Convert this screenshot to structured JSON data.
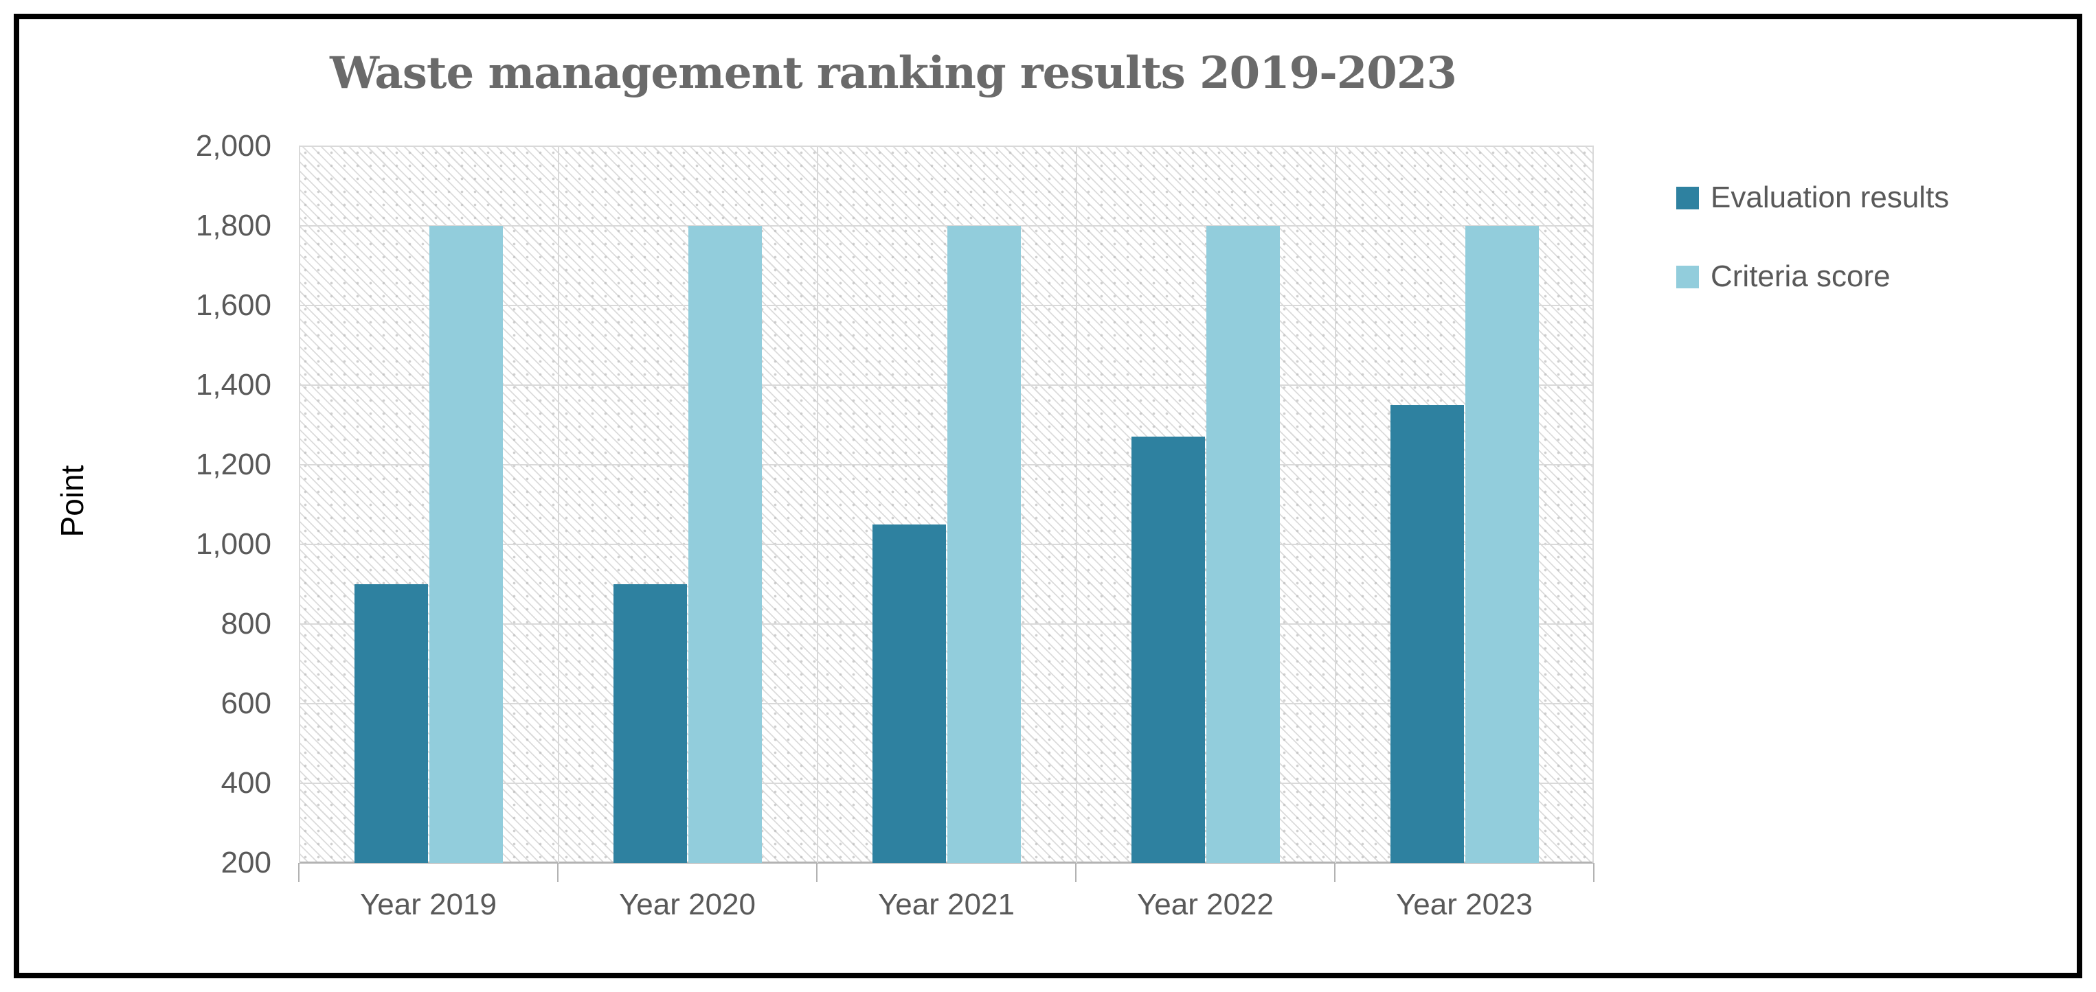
{
  "chart_data": {
    "type": "bar",
    "title": "Waste management ranking results 2019-2023",
    "categories": [
      "Year 2019",
      "Year 2020",
      "Year 2021",
      "Year 2022",
      "Year 2023"
    ],
    "series": [
      {
        "name": "Evaluation results",
        "color": "#2E81A0",
        "values": [
          900,
          900,
          1050,
          1270,
          1350
        ]
      },
      {
        "name": "Criteria score",
        "color": "#92CDDC",
        "values": [
          1800,
          1800,
          1800,
          1800,
          1800
        ]
      }
    ],
    "xlabel": "",
    "ylabel": "Point",
    "ylim": [
      200,
      2000
    ],
    "ytick_step": 200,
    "ytick_labels": [
      "200",
      "400",
      "600",
      "800",
      "1,000",
      "1,200",
      "1,400",
      "1,600",
      "1,800",
      "2,000"
    ],
    "grid": true,
    "legend_position": "right",
    "plot_background_pattern": "diagonal-hatch"
  },
  "styles": {
    "title_color": "#6a6a6a",
    "tick_label_color": "#595959",
    "gridline_color": "#d9d9d9",
    "axis_line_color": "#b3b3b3",
    "frame_border_color": "#000000"
  }
}
